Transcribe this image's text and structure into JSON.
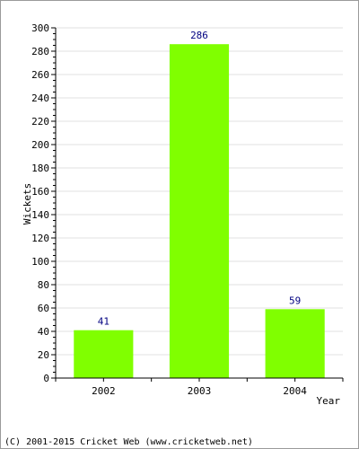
{
  "chart_data": {
    "type": "bar",
    "categories": [
      "2002",
      "2003",
      "2004"
    ],
    "values": [
      41,
      286,
      59
    ],
    "xlabel": "Year",
    "ylabel": "Wickets",
    "ylim": [
      0,
      300
    ],
    "ytick_step": 20,
    "grid": true,
    "bar_color": "#80ff00",
    "label_color": "#000080"
  },
  "footer": "(C) 2001-2015 Cricket Web (www.cricketweb.net)"
}
